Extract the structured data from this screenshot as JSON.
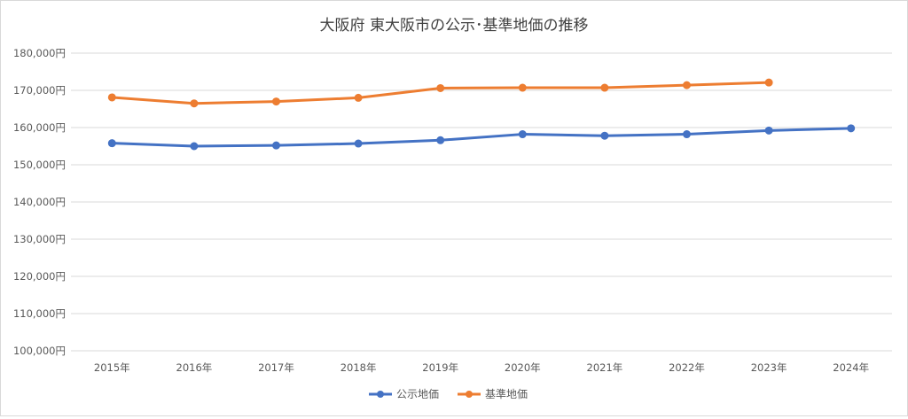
{
  "chart_data": {
    "type": "line",
    "title": "大阪府 東大阪市の公示･基準地価の推移",
    "xlabel": "",
    "ylabel": "",
    "categories": [
      "2015年",
      "2016年",
      "2017年",
      "2018年",
      "2019年",
      "2020年",
      "2021年",
      "2022年",
      "2023年",
      "2024年"
    ],
    "ylim": [
      100000,
      180000
    ],
    "yticks": [
      100000,
      110000,
      120000,
      130000,
      140000,
      150000,
      160000,
      170000,
      180000
    ],
    "ytick_labels": [
      "100,000円",
      "110,000円",
      "120,000円",
      "130,000円",
      "140,000円",
      "150,000円",
      "160,000円",
      "170,000円",
      "180,000円"
    ],
    "grid": true,
    "legend_position": "bottom",
    "series": [
      {
        "name": "公示地価",
        "color": "#4472c4",
        "values": [
          155800,
          155000,
          155200,
          155700,
          156600,
          158200,
          157800,
          158200,
          159200,
          159800
        ]
      },
      {
        "name": "基準地価",
        "color": "#ed7d31",
        "values": [
          168100,
          166500,
          167000,
          168000,
          170600,
          170700,
          170700,
          171400,
          172100,
          null
        ]
      }
    ]
  }
}
